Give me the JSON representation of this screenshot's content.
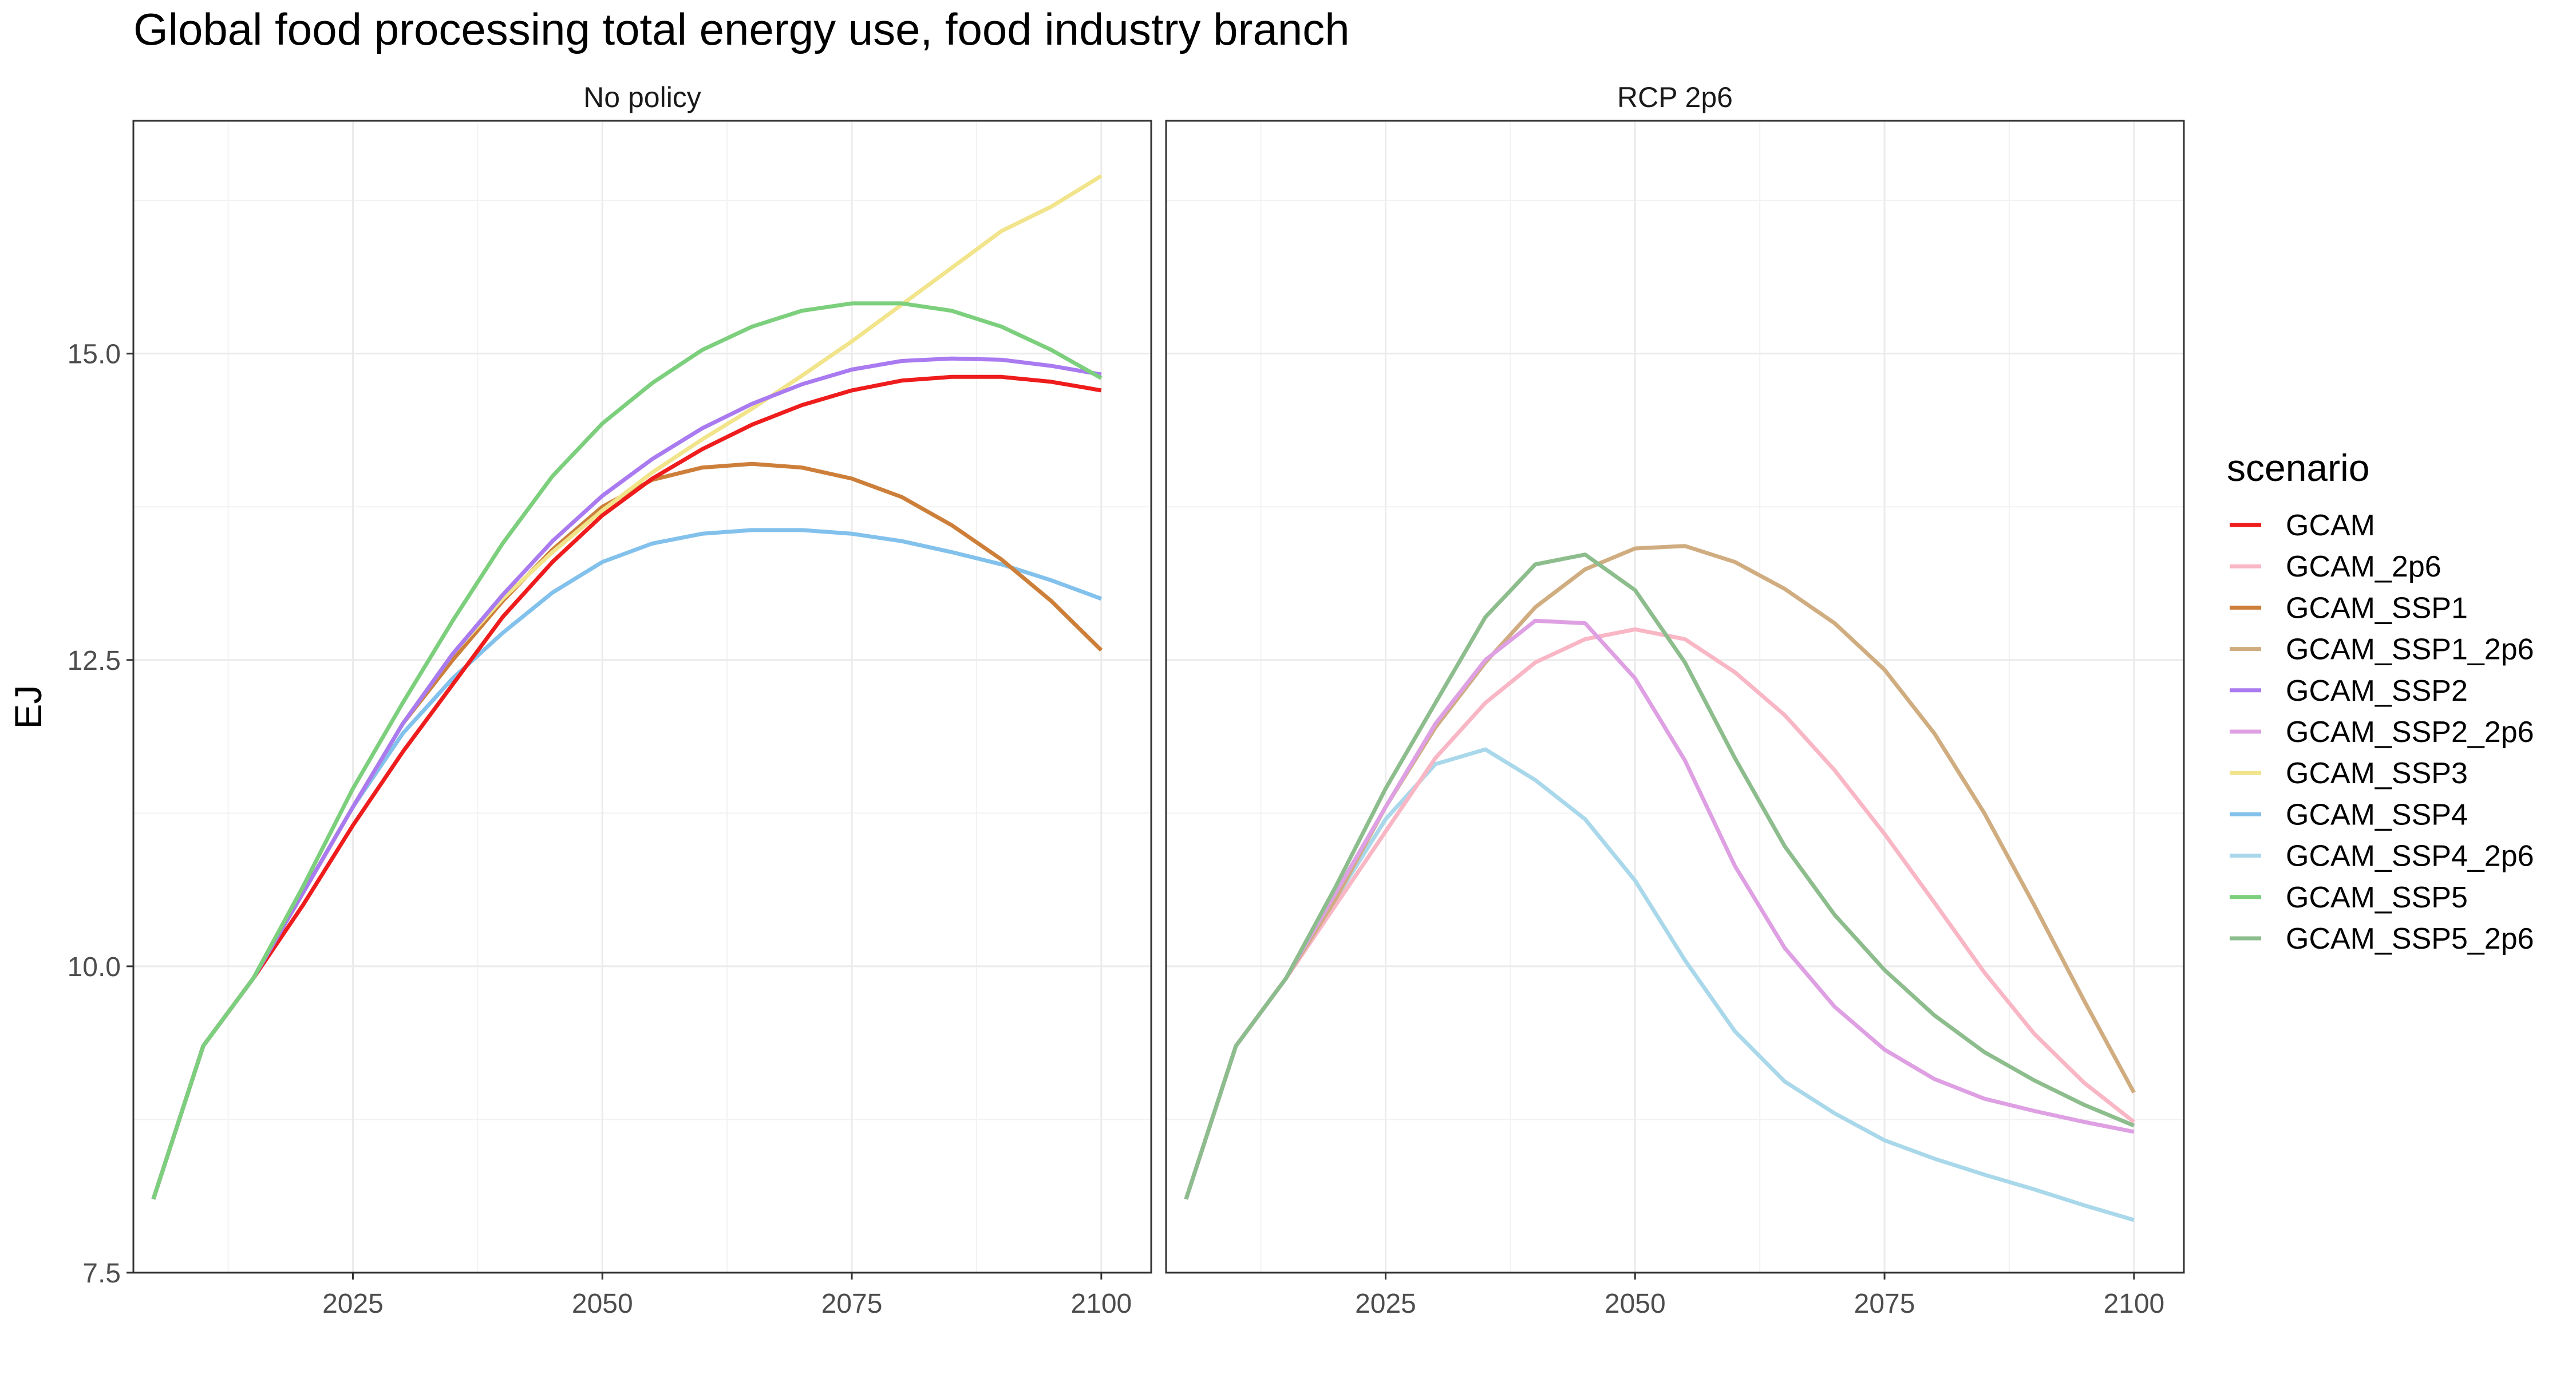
{
  "chart_data": {
    "type": "line",
    "title": "Global food processing total energy use, food industry branch",
    "ylabel": "EJ",
    "xlabel": "",
    "xlim": [
      2003,
      2105
    ],
    "ylim": [
      7.5,
      16.9
    ],
    "x_ticks": [
      2025,
      2050,
      2075,
      2100
    ],
    "y_ticks": [
      7.5,
      10.0,
      12.5,
      15.0
    ],
    "y_tick_labels": [
      "7.5",
      "10.0",
      "12.5",
      "15.0"
    ],
    "grid": true,
    "legend_title": "scenario",
    "legend_position": "right",
    "x": [
      2005,
      2010,
      2015,
      2020,
      2025,
      2030,
      2035,
      2040,
      2045,
      2050,
      2055,
      2060,
      2065,
      2070,
      2075,
      2080,
      2085,
      2090,
      2095,
      2100
    ],
    "legend": [
      {
        "name": "GCAM",
        "color": "#ee1c1c"
      },
      {
        "name": "GCAM_2p6",
        "color": "#f9b6c5"
      },
      {
        "name": "GCAM_SSP1",
        "color": "#cd7f3a"
      },
      {
        "name": "GCAM_SSP1_2p6",
        "color": "#d0ad80"
      },
      {
        "name": "GCAM_SSP2",
        "color": "#a97af0"
      },
      {
        "name": "GCAM_SSP2_2p6",
        "color": "#dea0e3"
      },
      {
        "name": "GCAM_SSP3",
        "color": "#f1e48a"
      },
      {
        "name": "GCAM_SSP4",
        "color": "#82c1ec"
      },
      {
        "name": "GCAM_SSP4_2p6",
        "color": "#a9d8ea"
      },
      {
        "name": "GCAM_SSP5",
        "color": "#7ccf7c"
      },
      {
        "name": "GCAM_SSP5_2p6",
        "color": "#8dbd8d"
      }
    ],
    "panels": [
      {
        "label": "No policy",
        "series": [
          {
            "name": "GCAM_SSP4",
            "color": "#82c1ec",
            "values": [
              8.1,
              9.35,
              9.9,
              10.6,
              11.3,
              11.9,
              12.35,
              12.72,
              13.05,
              13.3,
              13.45,
              13.53,
              13.56,
              13.56,
              13.53,
              13.47,
              13.38,
              13.28,
              13.15,
              13.0
            ]
          },
          {
            "name": "GCAM_SSP1",
            "color": "#cd7f3a",
            "values": [
              8.1,
              9.35,
              9.9,
              10.6,
              11.3,
              11.98,
              12.5,
              12.98,
              13.4,
              13.75,
              13.97,
              14.07,
              14.1,
              14.07,
              13.98,
              13.83,
              13.6,
              13.32,
              12.98,
              12.58
            ]
          },
          {
            "name": "GCAM_SSP3",
            "color": "#f1e48a",
            "values": [
              8.1,
              9.35,
              9.9,
              10.6,
              11.3,
              11.98,
              12.55,
              13.0,
              13.38,
              13.72,
              14.03,
              14.3,
              14.55,
              14.82,
              15.1,
              15.4,
              15.7,
              16.0,
              16.2,
              16.45
            ]
          },
          {
            "name": "GCAM",
            "color": "#ee1c1c",
            "values": [
              8.1,
              9.35,
              9.9,
              10.5,
              11.15,
              11.75,
              12.3,
              12.85,
              13.3,
              13.68,
              13.98,
              14.22,
              14.42,
              14.58,
              14.7,
              14.78,
              14.81,
              14.81,
              14.77,
              14.7
            ]
          },
          {
            "name": "GCAM_SSP2",
            "color": "#a97af0",
            "values": [
              8.1,
              9.35,
              9.9,
              10.6,
              11.3,
              11.98,
              12.55,
              13.03,
              13.47,
              13.84,
              14.14,
              14.39,
              14.59,
              14.75,
              14.87,
              14.94,
              14.96,
              14.95,
              14.9,
              14.83
            ]
          },
          {
            "name": "GCAM_SSP5",
            "color": "#7ccf7c",
            "values": [
              8.1,
              9.35,
              9.9,
              10.65,
              11.45,
              12.15,
              12.82,
              13.45,
              14.0,
              14.43,
              14.76,
              15.03,
              15.22,
              15.35,
              15.41,
              15.41,
              15.35,
              15.22,
              15.03,
              14.8
            ]
          }
        ]
      },
      {
        "label": "RCP 2p6",
        "series": [
          {
            "name": "GCAM_SSP4_2p6",
            "color": "#a9d8ea",
            "values": [
              8.1,
              9.35,
              9.9,
              10.55,
              11.2,
              11.65,
              11.77,
              11.52,
              11.2,
              10.7,
              10.05,
              9.47,
              9.06,
              8.8,
              8.58,
              8.43,
              8.3,
              8.18,
              8.05,
              7.93
            ]
          },
          {
            "name": "GCAM_2p6",
            "color": "#f9b6c5",
            "values": [
              8.1,
              9.35,
              9.9,
              10.5,
              11.1,
              11.7,
              12.15,
              12.48,
              12.67,
              12.75,
              12.67,
              12.4,
              12.05,
              11.6,
              11.08,
              10.52,
              9.95,
              9.45,
              9.05,
              8.73
            ]
          },
          {
            "name": "GCAM_SSP1_2p6",
            "color": "#d0ad80",
            "values": [
              8.1,
              9.35,
              9.9,
              10.55,
              11.3,
              11.95,
              12.48,
              12.93,
              13.24,
              13.41,
              13.43,
              13.3,
              13.08,
              12.8,
              12.42,
              11.9,
              11.25,
              10.5,
              9.72,
              8.97
            ]
          },
          {
            "name": "GCAM_SSP2_2p6",
            "color": "#dea0e3",
            "values": [
              8.1,
              9.35,
              9.9,
              10.6,
              11.3,
              11.98,
              12.5,
              12.82,
              12.8,
              12.35,
              11.68,
              10.82,
              10.15,
              9.67,
              9.32,
              9.08,
              8.92,
              8.82,
              8.73,
              8.65
            ]
          },
          {
            "name": "GCAM_SSP5_2p6",
            "color": "#8dbd8d",
            "values": [
              8.1,
              9.35,
              9.9,
              10.65,
              11.45,
              12.15,
              12.85,
              13.28,
              13.36,
              13.07,
              12.48,
              11.7,
              10.98,
              10.42,
              9.97,
              9.6,
              9.3,
              9.07,
              8.87,
              8.7
            ]
          }
        ]
      }
    ]
  }
}
